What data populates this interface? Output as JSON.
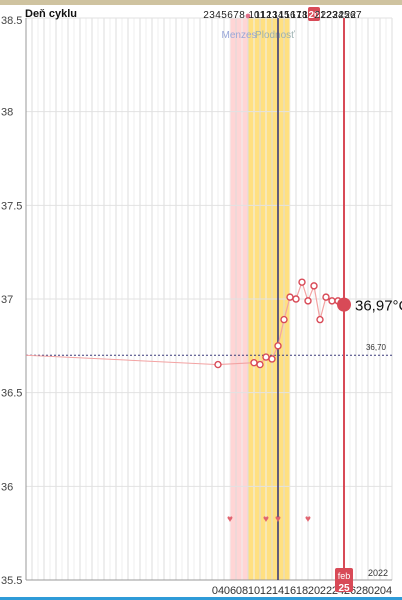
{
  "chart_data": {
    "type": "line",
    "header_label": "Deň cyklu",
    "cycle_days": [
      "2",
      "3",
      "4",
      "5",
      "6",
      "7",
      "8",
      "",
      "10",
      "11",
      "12",
      "13",
      "14",
      "15",
      "16",
      "17",
      "18",
      "19",
      "20",
      "21",
      "22",
      "23",
      "24",
      "25",
      "26",
      "27"
    ],
    "selected_cycle_day": "20",
    "ylim": [
      35.5,
      38.5
    ],
    "y_ticks": [
      "35.5",
      "36",
      "36.5",
      "37",
      "37.5",
      "38",
      "38.5"
    ],
    "x_ticks": [
      "04",
      "06",
      "08",
      "10",
      "12",
      "14",
      "16",
      "18",
      "20",
      "22",
      "24",
      "26",
      "28",
      "02",
      "04"
    ],
    "x_start": "2022-01-03",
    "x_end": "2022-03-05",
    "year_label": "2022",
    "month_label": "feb",
    "selected_date_day": "25",
    "selected_date": "2022-02-25",
    "today_date": "2022-02-14",
    "coverline_value": 36.7,
    "coverline_label": "36,70",
    "current_temp_label": "36,97°C",
    "phases": [
      {
        "name": "Menzes",
        "start": "2022-02-06",
        "end": "2022-02-09",
        "color": "#ffd5d5"
      },
      {
        "name": "Plodnosť",
        "start": "2022-02-09",
        "end": "2022-02-16",
        "color": "#ffe081"
      }
    ],
    "temperatures": [
      {
        "x": "2022-02-04",
        "y": 36.65
      },
      {
        "x": "2022-02-10",
        "y": 36.66
      },
      {
        "x": "2022-02-11",
        "y": 36.65
      },
      {
        "x": "2022-02-12",
        "y": 36.69
      },
      {
        "x": "2022-02-13",
        "y": 36.68
      },
      {
        "x": "2022-02-14",
        "y": 36.75
      },
      {
        "x": "2022-02-15",
        "y": 36.89
      },
      {
        "x": "2022-02-16",
        "y": 37.01
      },
      {
        "x": "2022-02-17",
        "y": 37.0
      },
      {
        "x": "2022-02-18",
        "y": 37.09
      },
      {
        "x": "2022-02-19",
        "y": 36.99
      },
      {
        "x": "2022-02-20",
        "y": 37.07
      },
      {
        "x": "2022-02-21",
        "y": 36.89
      },
      {
        "x": "2022-02-22",
        "y": 37.01
      },
      {
        "x": "2022-02-23",
        "y": 36.99
      },
      {
        "x": "2022-02-24",
        "y": 36.99
      },
      {
        "x": "2022-02-25",
        "y": 36.97
      }
    ],
    "heart_dates": [
      "2022-02-06",
      "2022-02-12",
      "2022-02-14",
      "2022-02-19"
    ],
    "colors": {
      "selected": "#d84a57",
      "today": "#3b3a7a",
      "coverline": "#3b3a7a",
      "grid": "#e4e4e4",
      "series": "#f3a3a3"
    }
  }
}
